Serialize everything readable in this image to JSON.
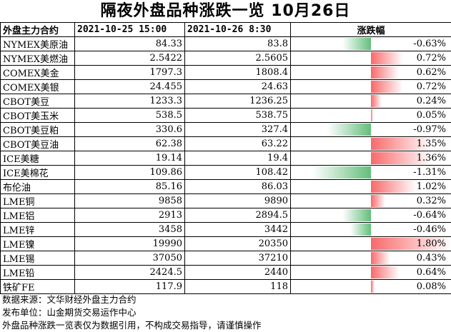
{
  "title": "隔夜外盘品种涨跌一览 10月26日",
  "headers": {
    "contract": "外盘主力合约",
    "date1": "2021-10-25 15:00",
    "date2": "2021-10-26 8:30",
    "change": "涨跌幅"
  },
  "colors": {
    "positive": "#f8696b",
    "negative": "#63be7b"
  },
  "rows": [
    {
      "name": "NYMEX美原油",
      "v1": "84.33",
      "v2": "83.8",
      "pct": "-0.63%",
      "change": -0.63
    },
    {
      "name": "NYMEX美燃油",
      "v1": "2.5422",
      "v2": "2.5605",
      "pct": "0.72%",
      "change": 0.72
    },
    {
      "name": "COMEX美金",
      "v1": "1797.3",
      "v2": "1808.4",
      "pct": "0.62%",
      "change": 0.62
    },
    {
      "name": "COMEX美银",
      "v1": "24.455",
      "v2": "24.63",
      "pct": "0.72%",
      "change": 0.72
    },
    {
      "name": "CBOT美豆",
      "v1": "1233.3",
      "v2": "1236.25",
      "pct": "0.24%",
      "change": 0.24
    },
    {
      "name": "CBOT美玉米",
      "v1": "538.5",
      "v2": "538.75",
      "pct": "0.05%",
      "change": 0.05
    },
    {
      "name": "CBOT美豆粕",
      "v1": "330.6",
      "v2": "327.4",
      "pct": "-0.97%",
      "change": -0.97
    },
    {
      "name": "CBOT美豆油",
      "v1": "62.38",
      "v2": "63.22",
      "pct": "1.35%",
      "change": 1.35
    },
    {
      "name": "ICE美糖",
      "v1": "19.14",
      "v2": "19.4",
      "pct": "1.36%",
      "change": 1.36
    },
    {
      "name": "ICE美棉花",
      "v1": "109.86",
      "v2": "108.42",
      "pct": "-1.31%",
      "change": -1.31
    },
    {
      "name": "布伦油",
      "v1": "85.16",
      "v2": "86.03",
      "pct": "1.02%",
      "change": 1.02
    },
    {
      "name": "LME铜",
      "v1": "9858",
      "v2": "9890",
      "pct": "0.32%",
      "change": 0.32
    },
    {
      "name": "LME铝",
      "v1": "2913",
      "v2": "2894.5",
      "pct": "-0.64%",
      "change": -0.64
    },
    {
      "name": "LME锌",
      "v1": "3458",
      "v2": "3442",
      "pct": "-0.46%",
      "change": -0.46
    },
    {
      "name": "LME镍",
      "v1": "19990",
      "v2": "20350",
      "pct": "1.80%",
      "change": 1.8
    },
    {
      "name": "LME锡",
      "v1": "37050",
      "v2": "37210",
      "pct": "0.43%",
      "change": 0.43
    },
    {
      "name": "LME铅",
      "v1": "2424.5",
      "v2": "2440",
      "pct": "0.64%",
      "change": 0.64
    },
    {
      "name": "铁矿FE",
      "v1": "117.9",
      "v2": "118",
      "pct": "0.08%",
      "change": 0.08
    }
  ],
  "notes": [
    "数据来源：文华财经外盘主力合约",
    "发布单位：山金期货交易运作中心",
    "外盘品种涨跌一览表仅为数据引用，不构成交易指导，请谨慎操作"
  ]
}
